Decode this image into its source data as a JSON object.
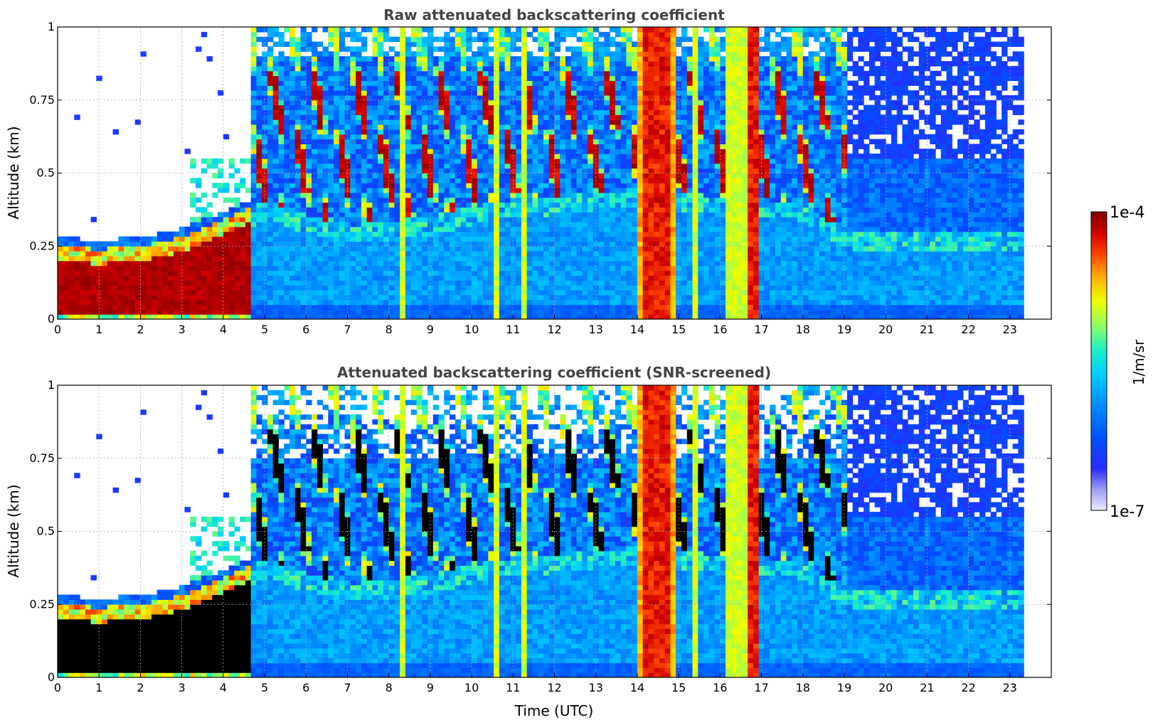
{
  "chart_data": [
    {
      "type": "heatmap",
      "title": "Raw attenuated backscattering coefficient",
      "xlabel": "",
      "ylabel": "Altitude (km)",
      "xlim": [
        0,
        24
      ],
      "ylim": [
        0,
        1
      ],
      "xticks": [
        "0",
        "1",
        "2",
        "3",
        "4",
        "5",
        "6",
        "7",
        "8",
        "9",
        "10",
        "11",
        "12",
        "13",
        "14",
        "15",
        "16",
        "17",
        "18",
        "19",
        "20",
        "21",
        "22",
        "23"
      ],
      "yticks": [
        "0",
        "0.25",
        "0.5",
        "0.75",
        "1"
      ],
      "grid": true,
      "data_end_hour": 23.3,
      "features": {
        "boundary_layer_top_km": [
          {
            "hour": 0,
            "value": 0.25
          },
          {
            "hour": 1,
            "value": 0.24
          },
          {
            "hour": 2,
            "value": 0.25
          },
          {
            "hour": 3,
            "value": 0.28
          },
          {
            "hour": 4,
            "value": 0.34
          },
          {
            "hour": 5,
            "value": 0.4
          },
          {
            "hour": 7,
            "value": 0.32
          },
          {
            "hour": 9,
            "value": 0.35
          },
          {
            "hour": 10.5,
            "value": 0.4
          },
          {
            "hour": 12,
            "value": 0.42
          },
          {
            "hour": 14,
            "value": 0.45
          },
          {
            "hour": 16,
            "value": 0.42
          },
          {
            "hour": 18,
            "value": 0.4
          },
          {
            "hour": 19,
            "value": 0.3
          },
          {
            "hour": 23.3,
            "value": 0.3
          }
        ],
        "precipitation_columns_hours": [
          [
            14.05,
            14.9
          ],
          [
            16.7,
            16.9
          ]
        ],
        "cloud_top_layer_hours": [
          [
            4.7,
            19.0
          ]
        ]
      }
    },
    {
      "type": "heatmap",
      "title": "Attenuated backscattering coefficient (SNR-screened)",
      "xlabel": "Time (UTC)",
      "ylabel": "Altitude (km)",
      "xlim": [
        0,
        24
      ],
      "ylim": [
        0,
        1
      ],
      "xticks": [
        "0",
        "1",
        "2",
        "3",
        "4",
        "5",
        "6",
        "7",
        "8",
        "9",
        "10",
        "11",
        "12",
        "13",
        "14",
        "15",
        "16",
        "17",
        "18",
        "19",
        "20",
        "21",
        "22",
        "23"
      ],
      "yticks": [
        "0",
        "0.25",
        "0.5",
        "0.75",
        "1"
      ],
      "grid": true,
      "data_end_hour": 23.3,
      "screened": true
    }
  ],
  "colorbar": {
    "label": "1/m/sr",
    "max_label": "1e-4",
    "min_label": "1e-7",
    "scale": "log",
    "range": [
      1e-07,
      0.0001
    ],
    "colors": [
      "#ececfb",
      "#9c9cf2",
      "#2a2aff",
      "#0050ff",
      "#0090ff",
      "#00d0ff",
      "#20f0c0",
      "#90ff60",
      "#f0ff00",
      "#ffb000",
      "#ff4000",
      "#d00000",
      "#800000"
    ]
  }
}
